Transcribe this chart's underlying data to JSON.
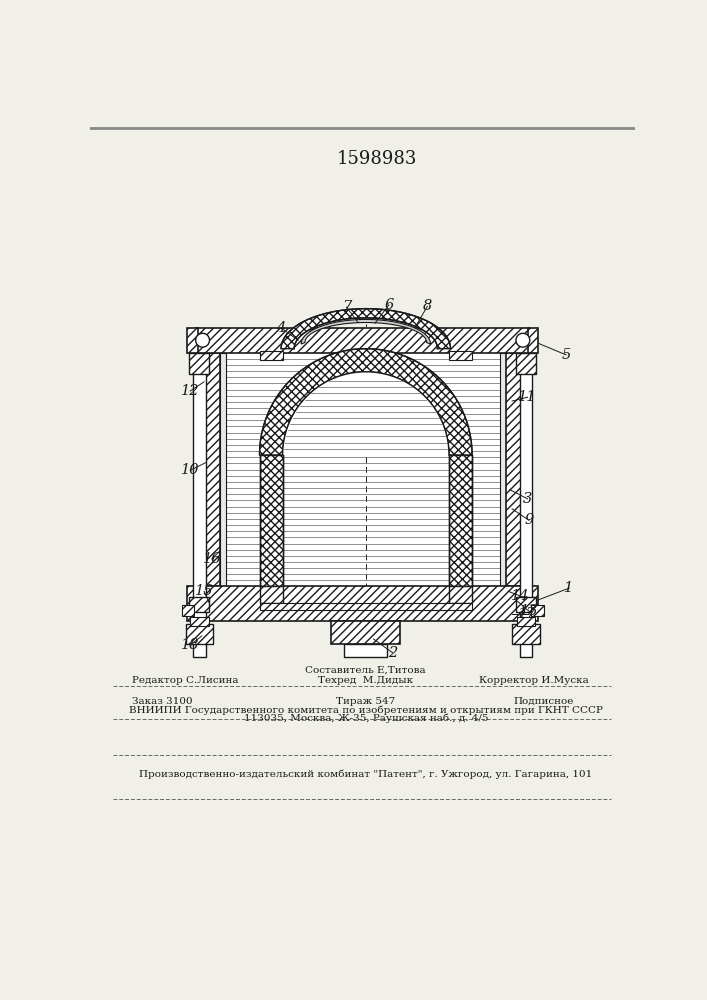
{
  "patent_number": "1598983",
  "bg_color": "#f0efe8",
  "line_color": "#1a1a1a",
  "footer_line1_left": "Редактор С.Лисина",
  "footer_line1_center_top": "Составитель Е,Титова",
  "footer_line1_center": "Техред  М.Дидык",
  "footer_line1_right": "Корректор И.Муска",
  "footer_line2_left": "Заказ 3100",
  "footer_line2_center": "Тираж 547",
  "footer_line2_right": "Подписное",
  "footer_line3": "ВНИИПИ Государственного комитета по изобретениям и открытиям при ГКНТ СССР",
  "footer_line4": "113035, Москва, Ж-35, Раушская наб., д. 4/5",
  "footer_line5": "Производственно-издательский комбинат \"Патент\", г. Ужгород, ул. Гагарина, 101"
}
